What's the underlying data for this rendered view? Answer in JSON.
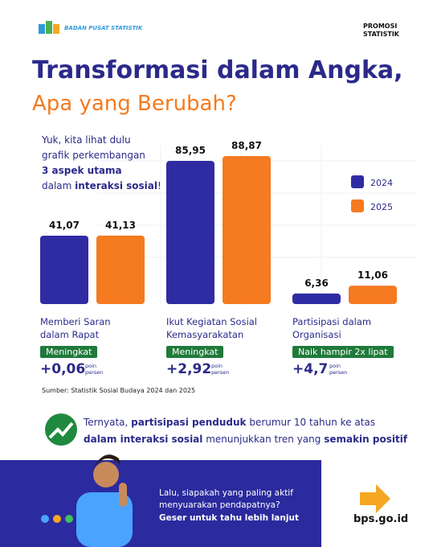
{
  "header": {
    "logo_text": "BADAN PUSAT STATISTIK",
    "badge": "PROMOSI\nSTATISTIK"
  },
  "title": {
    "line1": "Transformasi dalam Angka,",
    "line2": "Apa yang Berubah?"
  },
  "intro": {
    "line1": "Yuk, kita lihat dulu",
    "line2": "grafik perkembangan",
    "line3": "3 aspek utama",
    "line4_a": "dalam ",
    "line4_b": "interaksi sosial",
    "line4_c": "!"
  },
  "chart_data": {
    "type": "bar",
    "categories": [
      "Memberi Saran\ndalam Rapat",
      "Ikut Kegiatan Sosial\nKemasyarakatan",
      "Partisipasi dalam\nOrganisasi"
    ],
    "series": [
      {
        "name": "2024",
        "color": "#2f2ba3",
        "values": [
          41.07,
          85.95,
          6.36
        ],
        "value_labels": [
          "41,07",
          "85,95",
          "6,36"
        ]
      },
      {
        "name": "2025",
        "color": "#f57a20",
        "values": [
          41.13,
          88.87,
          11.06
        ],
        "value_labels": [
          "41,13",
          "88,87",
          "11,06"
        ]
      }
    ],
    "annotations": [
      {
        "badge": "Meningkat",
        "change": "+0,06",
        "unit": "poin\npersen"
      },
      {
        "badge": "Meningkat",
        "change": "+2,92",
        "unit": "poin\npersen"
      },
      {
        "badge": "Naik hampir 2x lipat",
        "change": "+4,7",
        "unit": "poin\npersen"
      }
    ],
    "source": "Sumber: Statistik Sosial Budaya 2024 dan 2025"
  },
  "conclusion": {
    "a": "Ternyata, ",
    "b": "partisipasi penduduk",
    "c": " berumur 10 tahun ke atas",
    "d": "dalam interaksi sosial",
    "e": " menunjukkan tren yang ",
    "f": "semakin positif"
  },
  "footer": {
    "question": "Lalu, siapakah yang paling aktif\nmenyuarakan pendapatnya?",
    "cta": "Geser untuk tahu lebih lanjut",
    "url": "bps.go.id"
  }
}
